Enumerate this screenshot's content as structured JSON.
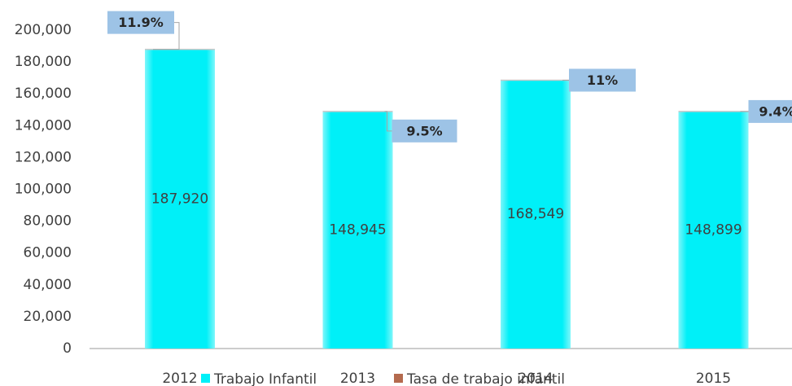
{
  "chart_data": {
    "type": "bar",
    "categories": [
      "2012",
      "2013",
      "2014",
      "2015"
    ],
    "series": [
      {
        "name": "Trabajo Infantil",
        "color": "#00f0f8",
        "values": [
          187920,
          148945,
          168549,
          148899
        ],
        "value_labels": [
          "187,920",
          "148,945",
          "168,549",
          "148,899"
        ]
      },
      {
        "name": "Tasa de trabajo infantil",
        "color": "#b46a4e",
        "values": [
          11.9,
          9.5,
          11,
          9.4
        ],
        "value_labels": [
          "11.9%",
          "9.5%",
          "11%",
          "9.4%"
        ]
      }
    ],
    "ylim": [
      0,
      200000
    ],
    "yticks": [
      0,
      {
        "value": 20000,
        "label": "20,000"
      },
      {
        "value": 40000,
        "label": "40,000"
      },
      {
        "value": 60000,
        "label": "60,000"
      },
      {
        "value": 80000,
        "label": "80,000"
      },
      {
        "value": 100000,
        "label": "100,000"
      },
      {
        "value": 120000,
        "label": "120,000"
      },
      {
        "value": 140000,
        "label": "140,000"
      },
      {
        "value": 160000,
        "label": "160,000"
      },
      {
        "value": 180000,
        "label": "180,000"
      },
      {
        "value": 200000,
        "label": "200,000"
      }
    ],
    "legend": "bottom"
  }
}
